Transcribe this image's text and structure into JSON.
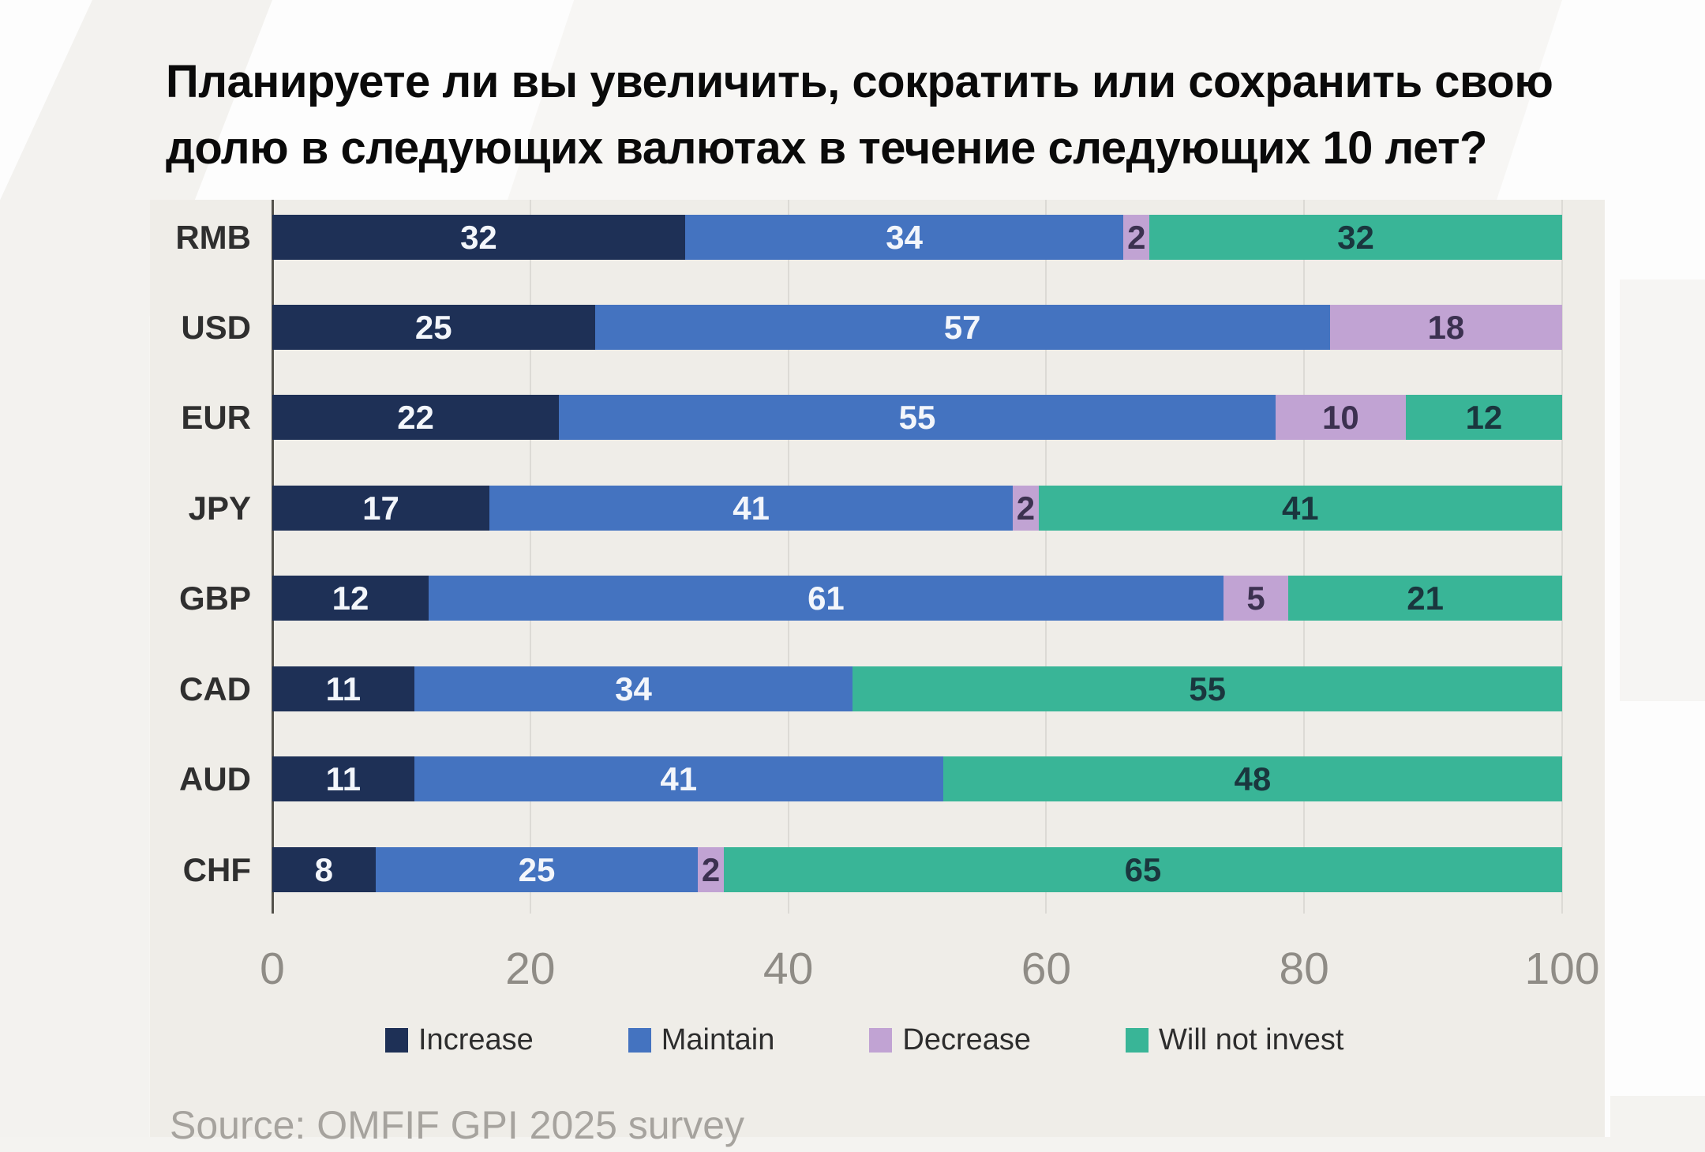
{
  "title": {
    "text": "Планируете ли вы увеличить, сократить или сохранить свою долю в следующих валютах в течение следующих 10 лет?",
    "lines": [
      "Планируете ли вы увеличить, сократить или сохранить свою",
      "долю в следующих валютах в течение следующих 10 лет?"
    ]
  },
  "source": "Source: OMFIF GPI 2025 survey",
  "colors": {
    "plot_background": "#efede8",
    "page_background": "#fdfdfd",
    "axis": "#53514b",
    "gridline": "#dcdad5",
    "category_label": "#2f2f2f",
    "tick_label": "#8f8c86",
    "legend_label": "#2d2d2d",
    "source_text": "#a6a39e",
    "title_text": "#0a0a0a"
  },
  "chart_data": {
    "type": "bar",
    "stacked": true,
    "orientation": "horizontal",
    "title": "Планируете ли вы увеличить, сократить или сохранить свою долю в следующих валютах в течение следующих 10 лет?",
    "categories": [
      "RMB",
      "USD",
      "EUR",
      "JPY",
      "GBP",
      "CAD",
      "AUD",
      "CHF"
    ],
    "series": [
      {
        "name": "Increase",
        "color": "#1e3056",
        "label_color": "#f3f6fb",
        "values": [
          32,
          25,
          22,
          17,
          12,
          11,
          11,
          8
        ]
      },
      {
        "name": "Maintain",
        "color": "#4473c0",
        "label_color": "#f3f6fb",
        "values": [
          34,
          57,
          55,
          41,
          61,
          34,
          41,
          25
        ]
      },
      {
        "name": "Decrease",
        "color": "#c1a3d3",
        "label_color": "#3c3150",
        "values": [
          2,
          18,
          10,
          2,
          5,
          0,
          0,
          2
        ]
      },
      {
        "name": "Will not invest",
        "color": "#39b597",
        "label_color": "#1a363e",
        "values": [
          32,
          0,
          12,
          41,
          21,
          55,
          48,
          65
        ]
      }
    ],
    "x_ticks": [
      0,
      20,
      40,
      60,
      80,
      100
    ],
    "xlim": [
      0,
      100
    ],
    "grid": "vertical",
    "legend_position": "bottom"
  }
}
